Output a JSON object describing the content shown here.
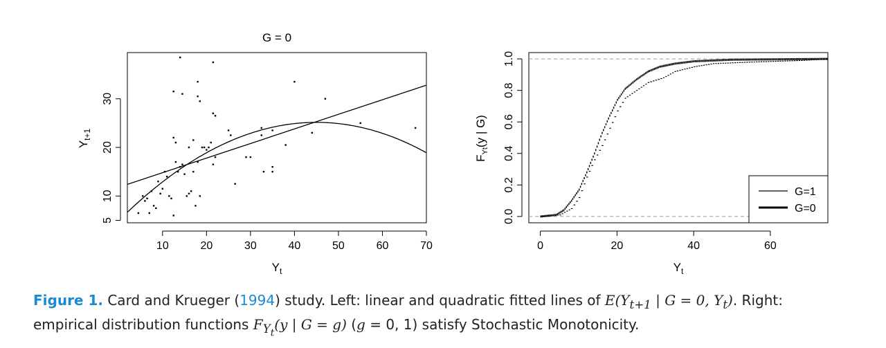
{
  "chart_data": [
    {
      "type": "scatter",
      "title": "G = 0",
      "xlabel": "Y",
      "xlabel_sub": "t",
      "ylabel": "Y",
      "ylabel_sub": "t+1",
      "xlim": [
        2,
        70
      ],
      "ylim": [
        4.5,
        39.5
      ],
      "x_ticks": [
        10,
        20,
        30,
        40,
        50,
        60,
        70
      ],
      "y_ticks": [
        5,
        10,
        20,
        30
      ],
      "points": [
        [
          4.5,
          6.5
        ],
        [
          5.5,
          10
        ],
        [
          6,
          9
        ],
        [
          6.5,
          9.5
        ],
        [
          7,
          6.5
        ],
        [
          7.5,
          11
        ],
        [
          8,
          8
        ],
        [
          8.5,
          7.5
        ],
        [
          9,
          13
        ],
        [
          9.5,
          10.5
        ],
        [
          10,
          11.5
        ],
        [
          10.5,
          15
        ],
        [
          11,
          14
        ],
        [
          11.5,
          10
        ],
        [
          12,
          9.5
        ],
        [
          12.5,
          6
        ],
        [
          12.5,
          22
        ],
        [
          13,
          17
        ],
        [
          13.5,
          15
        ],
        [
          14,
          16
        ],
        [
          14.5,
          16.5
        ],
        [
          15,
          14.5
        ],
        [
          15.5,
          10
        ],
        [
          16,
          10.5
        ],
        [
          16.5,
          11
        ],
        [
          17,
          15
        ],
        [
          17.5,
          8
        ],
        [
          18,
          17
        ],
        [
          18.5,
          10
        ],
        [
          19,
          20
        ],
        [
          19.5,
          20
        ],
        [
          20,
          19.5
        ],
        [
          20.5,
          20
        ],
        [
          21,
          21
        ],
        [
          21.5,
          16.5
        ],
        [
          22,
          18
        ],
        [
          14,
          38.5
        ],
        [
          21.5,
          37.5
        ],
        [
          12.5,
          31.5
        ],
        [
          14.5,
          31
        ],
        [
          18,
          33.5
        ],
        [
          18,
          30.5
        ],
        [
          18.5,
          29.5
        ],
        [
          21.5,
          27
        ],
        [
          22,
          26.5
        ],
        [
          13,
          21
        ],
        [
          16,
          20
        ],
        [
          17,
          21.5
        ],
        [
          25,
          23.5
        ],
        [
          25.5,
          22.5
        ],
        [
          26.5,
          12.5
        ],
        [
          29,
          18
        ],
        [
          30,
          18
        ],
        [
          32.5,
          22.5
        ],
        [
          33,
          15
        ],
        [
          35,
          15
        ],
        [
          35,
          16
        ],
        [
          35,
          23.5
        ],
        [
          32.5,
          24
        ],
        [
          38,
          20.5
        ],
        [
          40,
          33.5
        ],
        [
          44,
          23
        ],
        [
          47,
          30
        ],
        [
          55,
          25
        ],
        [
          67.5,
          24
        ]
      ],
      "lines": [
        {
          "name": "linear",
          "intercept": 11.8,
          "slope": 0.3
        },
        {
          "name": "quadratic",
          "a": 4.9,
          "b": 0.9,
          "c": -0.01
        }
      ]
    },
    {
      "type": "line",
      "title": "",
      "xlabel": "Y",
      "xlabel_sub": "t",
      "ylabel": "F",
      "ylabel_sub": "Yt",
      "ylabel_rest": "(y | G)",
      "xlim": [
        -3,
        75
      ],
      "ylim": [
        -0.04,
        1.04
      ],
      "x_ticks": [
        0,
        20,
        40,
        60
      ],
      "y_ticks": [
        0.0,
        0.2,
        0.4,
        0.6,
        0.8,
        1.0
      ],
      "y_tick_labels": [
        "0.0",
        "0.2",
        "0.4",
        "0.6",
        "0.8",
        "1.0"
      ],
      "reference_lines": [
        0,
        1
      ],
      "series": [
        {
          "name": "G=1",
          "style": "thin",
          "points": [
            [
              0,
              0
            ],
            [
              5,
              0.01
            ],
            [
              8,
              0.05
            ],
            [
              10,
              0.12
            ],
            [
              12,
              0.25
            ],
            [
              14,
              0.36
            ],
            [
              16,
              0.45
            ],
            [
              18,
              0.56
            ],
            [
              20,
              0.67
            ],
            [
              22,
              0.75
            ],
            [
              25,
              0.8
            ],
            [
              28,
              0.85
            ],
            [
              32,
              0.88
            ],
            [
              35,
              0.92
            ],
            [
              40,
              0.95
            ],
            [
              45,
              0.97
            ],
            [
              55,
              0.98
            ],
            [
              68,
              0.99
            ],
            [
              75,
              1.0
            ]
          ]
        },
        {
          "name": "G=0",
          "style": "thick",
          "points": [
            [
              0,
              0
            ],
            [
              4,
              0.01
            ],
            [
              6,
              0.04
            ],
            [
              8,
              0.1
            ],
            [
              10,
              0.17
            ],
            [
              12,
              0.28
            ],
            [
              14,
              0.4
            ],
            [
              16,
              0.53
            ],
            [
              18,
              0.64
            ],
            [
              20,
              0.74
            ],
            [
              22,
              0.81
            ],
            [
              25,
              0.87
            ],
            [
              28,
              0.92
            ],
            [
              31,
              0.95
            ],
            [
              35,
              0.97
            ],
            [
              40,
              0.985
            ],
            [
              45,
              0.99
            ],
            [
              50,
              0.995
            ],
            [
              75,
              1.0
            ]
          ]
        }
      ],
      "legend": {
        "position": "bottom-right",
        "entries": [
          "G=1",
          "G=0"
        ]
      }
    }
  ],
  "caption": {
    "label": "Figure 1.",
    "line1_a": " Card and Krueger (",
    "year": "1994",
    "line1_b": ") study. Left: linear and quadratic fitted lines of ",
    "formula1": "E(Y",
    "formula1_sub": "t+1",
    "formula1_rest": " | G = 0, Y",
    "formula1_sub2": "t",
    "formula1_end": ")",
    "line1_c": ". Right:",
    "line2_a": "empirical distribution functions ",
    "formula2": "F",
    "formula2_sub": "Y",
    "formula2_subsub": "t",
    "formula2_rest": "(y | G = g)",
    "line2_b": " (",
    "formula3": "g",
    "line2_c": " = 0, 1) satisfy Stochastic Monotonicity."
  }
}
